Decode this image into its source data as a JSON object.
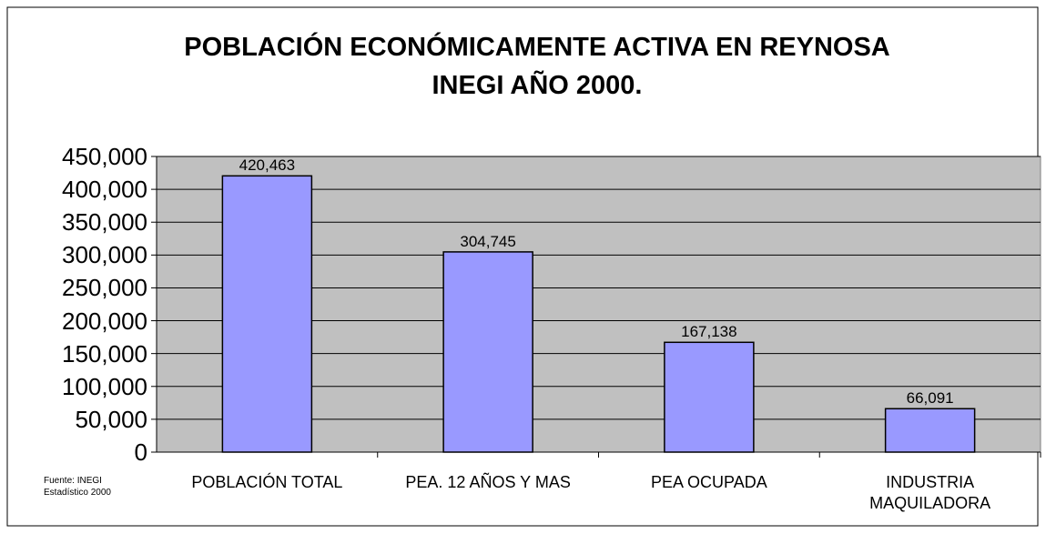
{
  "chart_data": {
    "type": "bar",
    "title": "POBLACIÓN ECONÓMICAMENTE ACTIVA EN REYNOSA",
    "subtitle": "INEGI AÑO 2000.",
    "categories": [
      "POBLACIÓN TOTAL",
      "PEA. 12 AÑOS Y MAS",
      "PEA OCUPADA",
      "INDUSTRIA MAQUILADORA"
    ],
    "values": [
      420463,
      304745,
      167138,
      66091
    ],
    "value_labels": [
      "420,463",
      "304,745",
      "167,138",
      "66,091"
    ],
    "color": "#9999ff",
    "plot_background": "#c0c0c0",
    "ylim": [
      0,
      450000
    ],
    "yticks": [
      0,
      {
        "value": 50000,
        "label": "50,000"
      },
      {
        "value": 100000,
        "label": "100,000"
      },
      {
        "value": 150000,
        "label": "150,000"
      },
      {
        "value": 200000,
        "label": "200,000"
      },
      {
        "value": 250000,
        "label": "250,000"
      },
      {
        "value": 300000,
        "label": "300,000"
      },
      {
        "value": 350000,
        "label": "350,000"
      },
      {
        "value": 400000,
        "label": "400,000"
      },
      {
        "value": 450000,
        "label": "450,000"
      }
    ],
    "grid": true,
    "note": "Fuente: INEGI Estadístico 2000"
  }
}
